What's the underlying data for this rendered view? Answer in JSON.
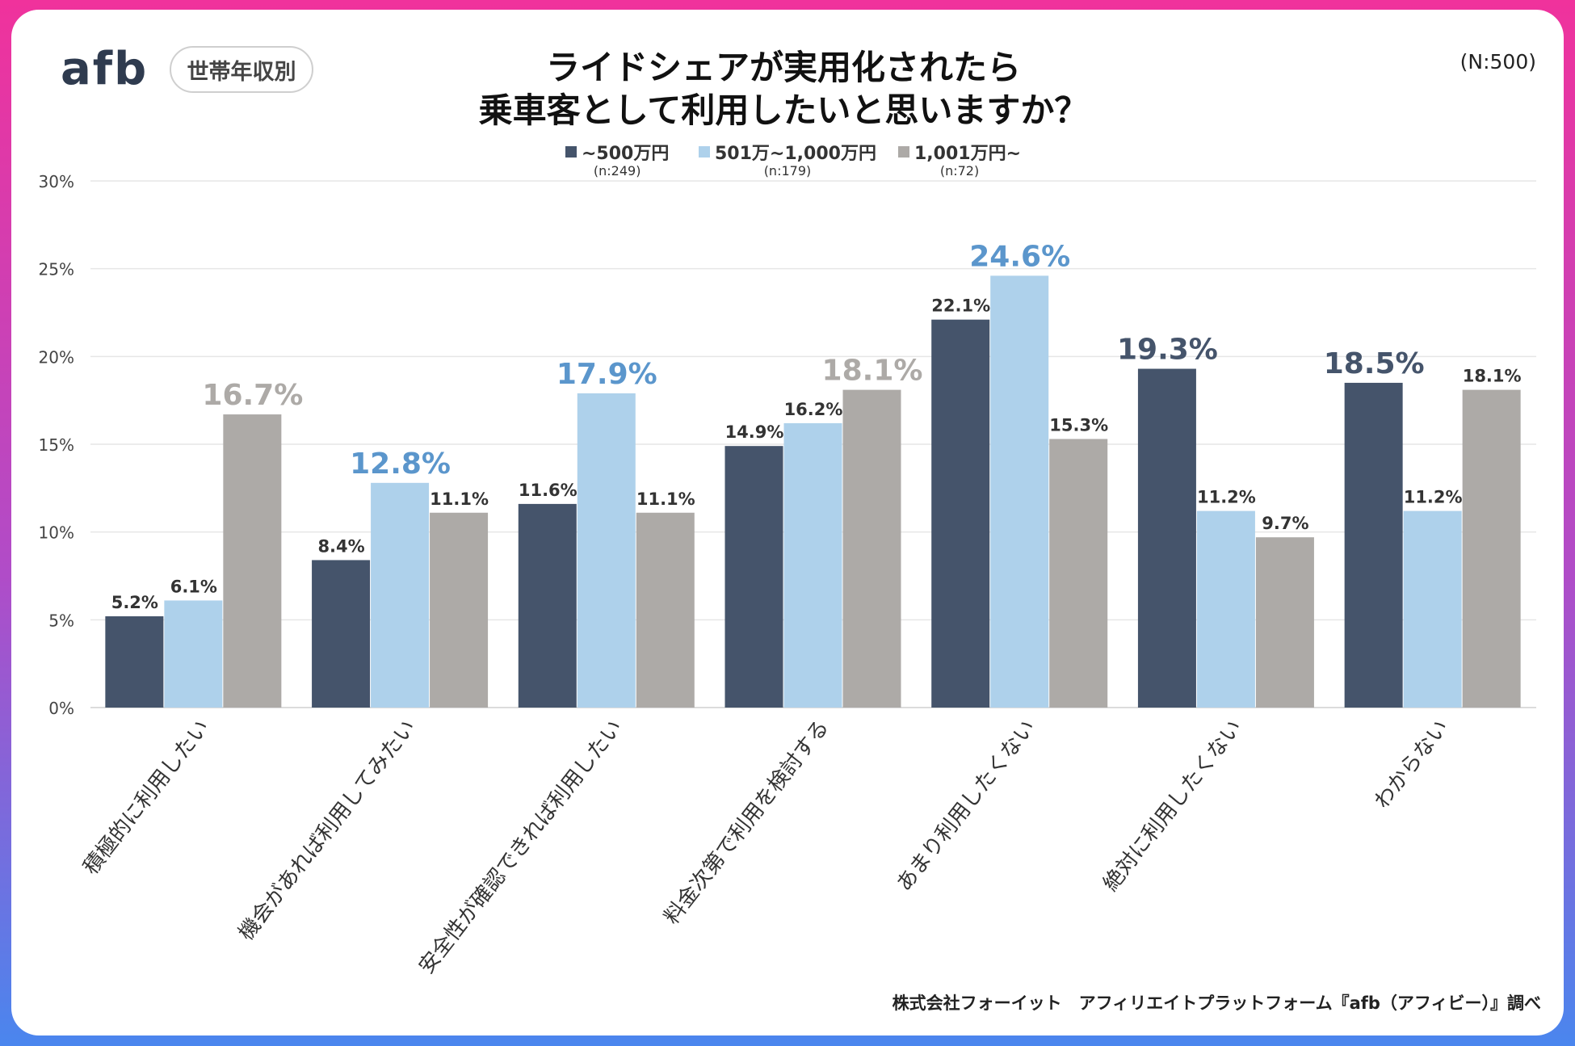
{
  "header": {
    "logo": "afb",
    "badge": "世帯年収別",
    "title_line1": "ライドシェアが実用化されたら",
    "title_line2": "乗車客として利用したいと思いますか？",
    "sample_size": "(N:500)"
  },
  "footer": {
    "source": "株式会社フォーイット　アフィリエイトプラットフォーム『afb（アフィビー）』調べ"
  },
  "colors": {
    "series1": "#45546b",
    "series2": "#aed1eb",
    "series3": "#adaaa7",
    "highlight1": "#45546b",
    "highlight2": "#5b96cc",
    "highlight3": "#adaaa7"
  },
  "chart_data": {
    "type": "bar",
    "title": "ライドシェアが実用化されたら乗車客として利用したいと思いますか？",
    "ylim": [
      0,
      30
    ],
    "yticks": [
      "0%",
      "5%",
      "10%",
      "15%",
      "20%",
      "25%",
      "30%"
    ],
    "grid": true,
    "legend_position": "top",
    "categories": [
      "積極的に利用したい",
      "機会があれば利用してみたい",
      "安全性が確認できれば利用したい",
      "料金次第で利用を検討する",
      "あまり利用したくない",
      "絶対に利用したくない",
      "わからない"
    ],
    "series": [
      {
        "name": "~500万円",
        "n": "(n:249)",
        "values": [
          5.2,
          8.4,
          11.6,
          14.9,
          22.1,
          19.3,
          18.5
        ],
        "labels": [
          "5.2%",
          "8.4%",
          "11.6%",
          "14.9%",
          "22.1%",
          "19.3%",
          "18.5%"
        ]
      },
      {
        "name": "501万~1,000万円",
        "n": "(n:179)",
        "values": [
          6.1,
          12.8,
          17.9,
          16.2,
          24.6,
          11.2,
          11.2
        ],
        "labels": [
          "6.1%",
          "12.8%",
          "17.9%",
          "16.2%",
          "24.6%",
          "11.2%",
          "11.2%"
        ]
      },
      {
        "name": "1,001万円~",
        "n": "(n:72)",
        "values": [
          16.7,
          11.1,
          11.1,
          18.1,
          15.3,
          9.7,
          18.1
        ],
        "labels": [
          "16.7%",
          "11.1%",
          "11.1%",
          "18.1%",
          "15.3%",
          "9.7%",
          "18.1%"
        ]
      }
    ],
    "highlighted": [
      [
        2,
        0
      ],
      [
        1,
        1
      ],
      [
        1,
        2
      ],
      [
        2,
        3
      ],
      [
        1,
        4
      ],
      [
        0,
        5
      ],
      [
        0,
        6
      ]
    ]
  }
}
